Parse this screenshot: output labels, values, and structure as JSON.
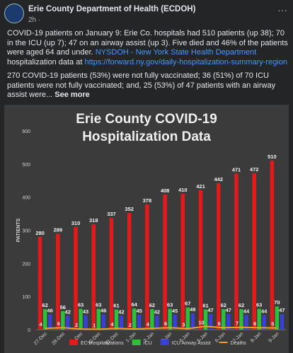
{
  "post": {
    "author": "Erie County Department of Health (ECDOH)",
    "time": "2h ·",
    "paragraphs": [
      [
        {
          "text": "COVID-19 patients on January 9: Erie Co. hospitals had 510 patients (up 38); 70 in the ICU (up 7); 47 on an airway assist (up 3). Five died and 46% of the patients were aged 64 and under. ",
          "link": false
        },
        {
          "text": "NYSDOH - New York State Health Department",
          "link": true
        },
        {
          "text": " hospitalization data at ",
          "link": false
        },
        {
          "text": "https://forward.ny.gov/daily-hospitalization-summary-region",
          "link": true
        }
      ],
      [
        {
          "text": "270 COVID-19 patients (53%) were not fully vaccinated; 36 (51%) of 70 ICU patients were not fully vaccinated; and, 25 (53%) of 47 patients with an airway assist were... ",
          "link": false
        }
      ]
    ],
    "see_more": "See more"
  },
  "chart_data": {
    "type": "bar",
    "title": "Erie County COVID-19 Hospitalization Data",
    "y_label": "PATIENTS",
    "categories": [
      "27-Dec",
      "28-Dec",
      "29-Dec",
      "30-Dec",
      "31-Dec",
      "1-Jan",
      "2-Jan",
      "3-Jan",
      "4-Jan",
      "5-Jan",
      "6-Jan",
      "7-Jan",
      "8-Jan",
      "9-Jan"
    ],
    "series": [
      {
        "name": "EC Hospitalizations",
        "color": "#e31a1c",
        "type": "bar",
        "values": [
          280,
          289,
          310,
          318,
          337,
          352,
          378,
          408,
          410,
          421,
          442,
          471,
          472,
          510
        ]
      },
      {
        "name": "ICU",
        "color": "#2fbf3a",
        "type": "bar",
        "values": [
          62,
          56,
          63,
          63,
          61,
          64,
          62,
          63,
          67,
          61,
          62,
          62,
          63,
          70
        ]
      },
      {
        "name": "ICU Airway Assist",
        "color": "#3a3fd6",
        "type": "bar",
        "values": [
          46,
          42,
          43,
          46,
          42,
          45,
          42,
          45,
          49,
          47,
          47,
          44,
          44,
          47
        ]
      },
      {
        "name": "Deaths",
        "color": "#f0a020",
        "type": "line",
        "values": [
          4,
          6,
          2,
          1,
          4,
          2,
          4,
          6,
          3,
          10,
          6,
          7,
          6,
          5
        ]
      }
    ],
    "ylim": [
      0,
      600
    ],
    "yticks": [
      0,
      100,
      200,
      300,
      400,
      500,
      600
    ],
    "grid": false
  }
}
